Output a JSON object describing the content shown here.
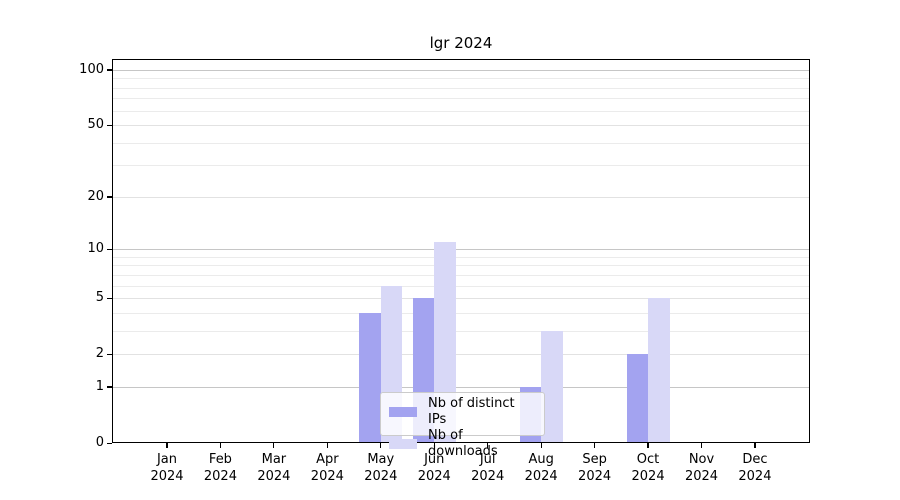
{
  "figure": {
    "title": "lgr 2024"
  },
  "legend": {
    "items": [
      {
        "label": "Nb of distinct IPs",
        "color": "#a3a3f0"
      },
      {
        "label": "Nb of downloads",
        "color": "#d8d8f7"
      }
    ]
  },
  "colors": {
    "grid_major": "#c6c6c6",
    "grid_tick": "#e2e2e2",
    "grid_minor": "#ebebeb",
    "spine": "#000000",
    "legend_border": "#cbcbcb"
  },
  "chart_data": {
    "type": "bar",
    "title": "lgr 2024",
    "categories": [
      "Jan 2024",
      "Feb 2024",
      "Mar 2024",
      "Apr 2024",
      "May 2024",
      "Jun 2024",
      "Jul 2024",
      "Aug 2024",
      "Sep 2024",
      "Oct 2024",
      "Nov 2024",
      "Dec 2024"
    ],
    "series": [
      {
        "name": "Nb of distinct IPs",
        "color": "#a3a3f0",
        "values": [
          0,
          0,
          0,
          0,
          4,
          5,
          0,
          1,
          0,
          2,
          0,
          0
        ]
      },
      {
        "name": "Nb of downloads",
        "color": "#d8d8f7",
        "values": [
          0,
          0,
          0,
          0,
          6,
          11,
          0,
          3,
          0,
          5,
          0,
          0
        ]
      }
    ],
    "xlabel": "",
    "ylabel": "",
    "y_axis": {
      "scale": "log10(1+value)",
      "ticks": [
        0,
        1,
        2,
        5,
        10,
        20,
        50,
        100
      ],
      "major_gridlines": [
        1,
        10,
        100
      ],
      "minor_gridlines": [
        3,
        4,
        6,
        7,
        8,
        9,
        30,
        40,
        60,
        70,
        80,
        90
      ],
      "ylim": [
        0,
        115
      ]
    },
    "grid": true,
    "legend_position": "lower center"
  }
}
